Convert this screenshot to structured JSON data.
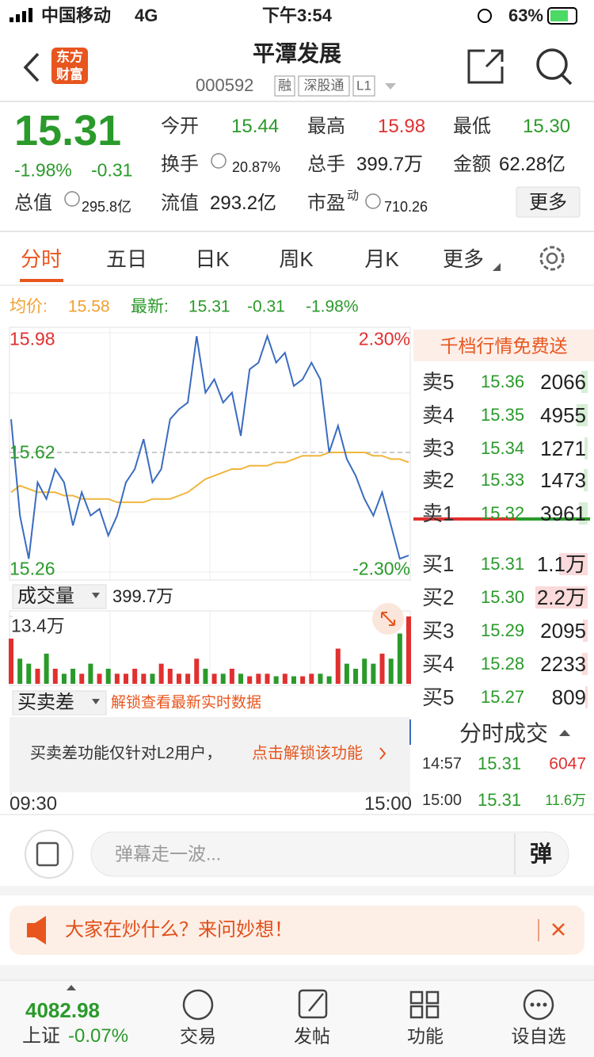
{
  "status_bar": {
    "carrier": "中国移动",
    "network": "4G",
    "time": "下午3:54",
    "battery": "63%"
  },
  "header": {
    "logo": [
      "东方",
      "财富"
    ],
    "title": "平潭发展",
    "code": "000592",
    "tags": [
      "融",
      "深股通",
      "L1"
    ]
  },
  "quote": {
    "price": "15.31",
    "change_pct": "-1.98%",
    "change": "-0.31",
    "stats": [
      {
        "label": "今开",
        "value": "15.44"
      },
      {
        "label": "最高",
        "value": "15.98"
      },
      {
        "label": "最低",
        "value": "15.30"
      },
      {
        "label": "换手",
        "value": "20.87%"
      },
      {
        "label": "总手",
        "value": "399.7万"
      },
      {
        "label": "金额",
        "value": "62.28亿"
      },
      {
        "label": "总值",
        "value": "295.8亿"
      },
      {
        "label": "流值",
        "value": "293.2亿"
      },
      {
        "label": "市盈",
        "sup": "动",
        "value": "710.26"
      }
    ],
    "more": "更多"
  },
  "tabs": [
    "分时",
    "五日",
    "日K",
    "周K",
    "月K",
    "更多"
  ],
  "info": {
    "avg_label": "均价:",
    "avg": "15.58",
    "latest_label": "最新:",
    "latest": "15.31",
    "change": "-0.31",
    "change_pct": "-1.98%"
  },
  "chart_data": [
    {
      "type": "line",
      "xlim": [
        0,
        45
      ],
      "xticks": [
        {
          "value": 0,
          "label": "09:30"
        },
        {
          "value": 45,
          "label": "15:00"
        }
      ],
      "ylim": [
        15.26,
        15.98
      ],
      "yticks": [
        15.98,
        15.62,
        15.26
      ],
      "y2lim": [
        -2.3,
        2.3
      ],
      "y2ticks": [
        {
          "value": 2.3,
          "label": "2.30%"
        },
        {
          "value": -2.3,
          "label": "-2.30%"
        }
      ],
      "series": [
        {
          "name": "price",
          "color": "#3a6cc0",
          "values": [
            15.72,
            15.43,
            15.3,
            15.53,
            15.48,
            15.57,
            15.53,
            15.4,
            15.5,
            15.43,
            15.45,
            15.37,
            15.43,
            15.53,
            15.57,
            15.66,
            15.53,
            15.57,
            15.72,
            15.75,
            15.77,
            15.97,
            15.8,
            15.84,
            15.77,
            15.8,
            15.67,
            15.87,
            15.89,
            15.97,
            15.89,
            15.92,
            15.82,
            15.84,
            15.89,
            15.84,
            15.62,
            15.7,
            15.6,
            15.55,
            15.48,
            15.43,
            15.5,
            15.4,
            15.3,
            15.31
          ]
        },
        {
          "name": "avg",
          "color": "#f0b53c",
          "values": [
            15.5,
            15.52,
            15.51,
            15.5,
            15.5,
            15.5,
            15.49,
            15.49,
            15.48,
            15.48,
            15.48,
            15.48,
            15.47,
            15.47,
            15.47,
            15.47,
            15.48,
            15.48,
            15.48,
            15.49,
            15.5,
            15.52,
            15.54,
            15.55,
            15.56,
            15.57,
            15.57,
            15.58,
            15.58,
            15.58,
            15.59,
            15.59,
            15.6,
            15.61,
            15.61,
            15.61,
            15.62,
            15.62,
            15.62,
            15.62,
            15.62,
            15.61,
            15.61,
            15.6,
            15.6,
            15.59
          ]
        }
      ]
    },
    {
      "type": "bar",
      "up_color": "#e0302f",
      "down_color": "#2a9a2a",
      "ylim": [
        0,
        13.4
      ],
      "yticks": [
        {
          "value": 13.4,
          "label": "13.4万"
        }
      ],
      "values": [
        9,
        5,
        4,
        3,
        6,
        3,
        2,
        3,
        2,
        4,
        2,
        3,
        2,
        2,
        3,
        2,
        2,
        4,
        3,
        2,
        2,
        5,
        3,
        2,
        2,
        3,
        2,
        1.5,
        2,
        2,
        1.5,
        2,
        1.5,
        1.5,
        2,
        2,
        1.5,
        7,
        4,
        3,
        5,
        4,
        6,
        5,
        10,
        13.4
      ]
    }
  ],
  "volume_panel": {
    "label": "成交量",
    "total": "399.7万"
  },
  "spread_panel": {
    "label": "买卖差",
    "hint": "解锁查看最新实时数据",
    "notice": "买卖差功能仅针对L2用户，",
    "link": "点击解锁该功能"
  },
  "order_book": {
    "title": "千档行情免费送",
    "sell": [
      {
        "label": "卖5",
        "price": "15.36",
        "volume": "2066"
      },
      {
        "label": "卖4",
        "price": "15.35",
        "volume": "4955"
      },
      {
        "label": "卖3",
        "price": "15.34",
        "volume": "1271"
      },
      {
        "label": "卖2",
        "price": "15.33",
        "volume": "1473"
      },
      {
        "label": "卖1",
        "price": "15.32",
        "volume": "3961"
      }
    ],
    "buy": [
      {
        "label": "买1",
        "price": "15.31",
        "volume": "1.1万"
      },
      {
        "label": "买2",
        "price": "15.30",
        "volume": "2.2万"
      },
      {
        "label": "买3",
        "price": "15.29",
        "volume": "2095"
      },
      {
        "label": "买4",
        "price": "15.28",
        "volume": "2233"
      },
      {
        "label": "买5",
        "price": "15.27",
        "volume": "809"
      }
    ]
  },
  "trades": {
    "title": "分时成交",
    "rows": [
      {
        "time": "14:57",
        "price": "15.31",
        "volume": "6047"
      },
      {
        "time": "15:00",
        "price": "15.31",
        "volume": "11.6万"
      }
    ]
  },
  "comment": {
    "placeholder": "弹幕走一波...",
    "button": "弹"
  },
  "banner": {
    "text": "大家在炒什么？来问妙想！"
  },
  "bottom_nav": {
    "index_value": "4082.98",
    "index_name": "上证",
    "index_change": "-0.07%",
    "items": [
      "交易",
      "发帖",
      "功能",
      "设自选"
    ]
  }
}
